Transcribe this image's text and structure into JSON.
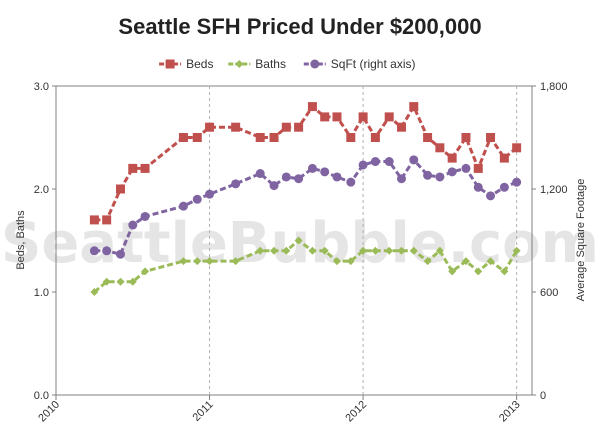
{
  "watermark": "SeattleBubble.com",
  "chart_data": {
    "type": "line",
    "title": "Seattle SFH Priced Under $200,000",
    "ylabel": "Beds, Baths",
    "y2label": "Average Square Footage",
    "xlabel": "",
    "xlim": [
      2010,
      2013.1
    ],
    "ylim": [
      0,
      3
    ],
    "y2lim": [
      0,
      1800
    ],
    "x_ticks": [
      "2010",
      "2011",
      "2012",
      "2013"
    ],
    "y_ticks": [
      "0.0",
      "1.0",
      "2.0",
      "3.0"
    ],
    "y2_ticks": [
      "0",
      "600",
      "1,200",
      "1,800"
    ],
    "grid": "vertical lines at each year",
    "legend_position": "top",
    "series": [
      {
        "name": "Beds",
        "axis": "left",
        "color": "#c0504d",
        "marker": "square",
        "x": [
          2010.25,
          2010.33,
          2010.42,
          2010.5,
          2010.58,
          2010.83,
          2010.92,
          2011.0,
          2011.17,
          2011.33,
          2011.42,
          2011.5,
          2011.58,
          2011.67,
          2011.75,
          2011.83,
          2011.92,
          2012.0,
          2012.08,
          2012.17,
          2012.25,
          2012.33,
          2012.42,
          2012.5,
          2012.58,
          2012.67,
          2012.75,
          2012.83,
          2012.92,
          2013.0
        ],
        "values": [
          1.7,
          1.7,
          2.0,
          2.2,
          2.2,
          2.5,
          2.5,
          2.6,
          2.6,
          2.5,
          2.5,
          2.6,
          2.6,
          2.8,
          2.7,
          2.7,
          2.5,
          2.7,
          2.5,
          2.7,
          2.6,
          2.8,
          2.5,
          2.4,
          2.3,
          2.5,
          2.2,
          2.5,
          2.3,
          2.4
        ]
      },
      {
        "name": "Baths",
        "axis": "left",
        "color": "#9bbb59",
        "marker": "diamond",
        "x": [
          2010.25,
          2010.33,
          2010.42,
          2010.5,
          2010.58,
          2010.83,
          2010.92,
          2011.0,
          2011.17,
          2011.33,
          2011.42,
          2011.5,
          2011.58,
          2011.67,
          2011.75,
          2011.83,
          2011.92,
          2012.0,
          2012.08,
          2012.17,
          2012.25,
          2012.33,
          2012.42,
          2012.5,
          2012.58,
          2012.67,
          2012.75,
          2012.83,
          2012.92,
          2013.0
        ],
        "values": [
          1.0,
          1.1,
          1.1,
          1.1,
          1.2,
          1.3,
          1.3,
          1.3,
          1.3,
          1.4,
          1.4,
          1.4,
          1.5,
          1.4,
          1.4,
          1.3,
          1.3,
          1.4,
          1.4,
          1.4,
          1.4,
          1.4,
          1.3,
          1.4,
          1.2,
          1.3,
          1.2,
          1.3,
          1.2,
          1.4
        ]
      },
      {
        "name": "SqFt (right axis)",
        "axis": "right",
        "color": "#8064a2",
        "marker": "circle",
        "x": [
          2010.25,
          2010.33,
          2010.42,
          2010.5,
          2010.58,
          2010.83,
          2010.92,
          2011.0,
          2011.17,
          2011.33,
          2011.42,
          2011.5,
          2011.58,
          2011.67,
          2011.75,
          2011.83,
          2011.92,
          2012.0,
          2012.08,
          2012.17,
          2012.25,
          2012.33,
          2012.42,
          2012.5,
          2012.58,
          2012.67,
          2012.75,
          2012.83,
          2012.92,
          2013.0
        ],
        "values": [
          840,
          840,
          820,
          990,
          1040,
          1100,
          1140,
          1170,
          1230,
          1290,
          1220,
          1270,
          1260,
          1320,
          1300,
          1270,
          1240,
          1340,
          1360,
          1360,
          1260,
          1370,
          1280,
          1270,
          1300,
          1320,
          1210,
          1160,
          1210,
          1240
        ]
      }
    ]
  }
}
